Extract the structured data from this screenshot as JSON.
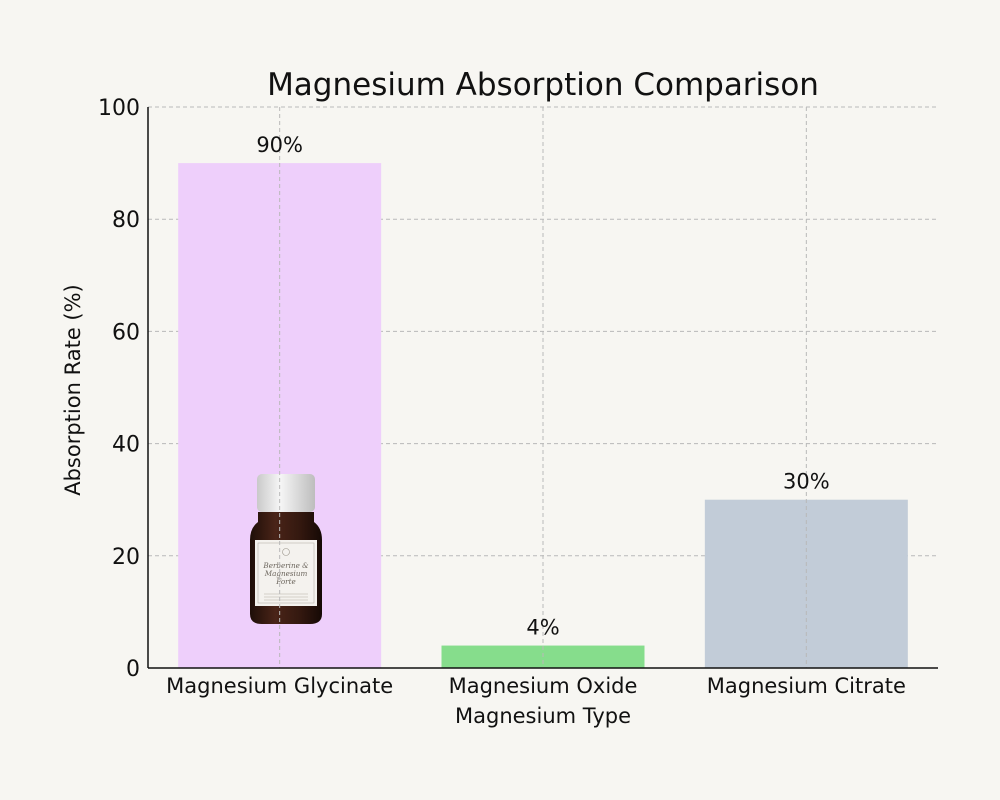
{
  "chart_data": {
    "type": "bar",
    "title": "Magnesium Absorption Comparison",
    "xlabel": "Magnesium Type",
    "ylabel": "Absorption Rate (%)",
    "categories": [
      "Magnesium Glycinate",
      "Magnesium Oxide",
      "Magnesium Citrate"
    ],
    "values": [
      90,
      4,
      30
    ],
    "data_labels": [
      "90%",
      "4%",
      "30%"
    ],
    "colors": [
      "#eecffb",
      "#86dd8c",
      "#c2ccd8"
    ],
    "ylim": [
      0,
      100
    ],
    "yticks": [
      0,
      20,
      40,
      60,
      80,
      100
    ],
    "ytick_labels": [
      "0",
      "20",
      "40",
      "60",
      "80",
      "100"
    ],
    "grid": true
  },
  "product_image": {
    "icon": "supplement-bottle-icon",
    "label_lines": [
      "Berberine &",
      "Magnesium",
      "Forte"
    ]
  }
}
